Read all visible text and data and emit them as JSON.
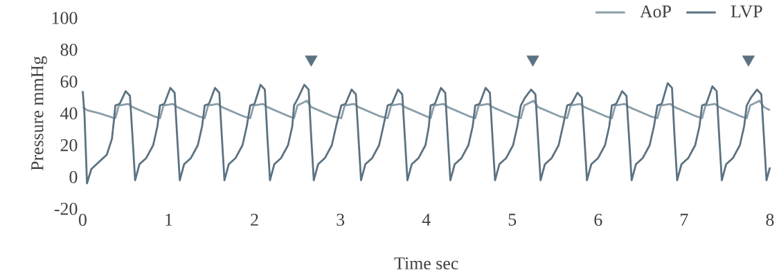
{
  "chart_data": {
    "type": "line",
    "xlabel": "Time sec",
    "ylabel": "Pressure mmHg",
    "xlim": [
      0,
      8
    ],
    "xticks": [
      0,
      1,
      2,
      3,
      4,
      5,
      6,
      7,
      8
    ],
    "ylim": [
      -20,
      100
    ],
    "yticks": [
      -20,
      0,
      20,
      40,
      60,
      80,
      100
    ],
    "legend": "top right",
    "series": [
      {
        "name": "AoP",
        "color": "#8a9ea8",
        "x": [
          0,
          0.05,
          0.2,
          0.37,
          0.38,
          0.42,
          0.53,
          0.58,
          0.84,
          0.9,
          0.94,
          1.05,
          1.1,
          1.36,
          1.42,
          1.46,
          1.57,
          1.62,
          1.88,
          1.95,
          1.99,
          2.1,
          2.15,
          2.41,
          2.46,
          2.5,
          2.61,
          2.66,
          2.92,
          3.01,
          3.05,
          3.16,
          3.21,
          3.47,
          3.55,
          3.59,
          3.7,
          3.75,
          4.01,
          4.05,
          4.09,
          4.2,
          4.25,
          4.51,
          4.57,
          4.61,
          4.72,
          4.77,
          5.03,
          5.1,
          5.14,
          5.25,
          5.3,
          5.56,
          5.64,
          5.68,
          5.79,
          5.84,
          6.1,
          6.16,
          6.2,
          6.31,
          6.36,
          6.62,
          6.69,
          6.73,
          6.84,
          6.89,
          7.15,
          7.21,
          7.25,
          7.36,
          7.41,
          7.67,
          7.73,
          7.77,
          7.88,
          7.93,
          8.0
        ],
        "values": [
          44,
          42,
          40,
          37,
          37,
          45,
          46,
          44,
          38,
          37,
          45,
          46,
          44,
          38,
          37,
          45,
          46,
          44,
          38,
          37,
          45,
          46,
          44,
          38,
          37,
          45,
          48,
          44,
          38,
          37,
          45,
          46,
          44,
          38,
          37,
          45,
          46,
          44,
          38,
          37,
          45,
          46,
          44,
          38,
          37,
          45,
          46,
          44,
          38,
          37,
          45,
          48,
          44,
          38,
          37,
          45,
          46,
          44,
          38,
          37,
          45,
          46,
          44,
          38,
          37,
          45,
          46,
          44,
          38,
          37,
          45,
          46,
          44,
          38,
          37,
          45,
          48,
          44,
          42
        ]
      },
      {
        "name": "LVP",
        "color": "#5b7282",
        "x": [
          0,
          0.02,
          0.05,
          0.1,
          0.18,
          0.28,
          0.34,
          0.36,
          0.38,
          0.43,
          0.5,
          0.55,
          0.58,
          0.61,
          0.66,
          0.74,
          0.82,
          0.87,
          0.9,
          0.95,
          1.02,
          1.07,
          1.1,
          1.13,
          1.18,
          1.26,
          1.34,
          1.39,
          1.42,
          1.47,
          1.54,
          1.59,
          1.62,
          1.65,
          1.7,
          1.78,
          1.86,
          1.91,
          1.95,
          2.0,
          2.07,
          2.12,
          2.15,
          2.18,
          2.23,
          2.31,
          2.39,
          2.44,
          2.46,
          2.51,
          2.58,
          2.63,
          2.66,
          2.69,
          2.74,
          2.82,
          2.9,
          2.95,
          3.01,
          3.06,
          3.13,
          3.18,
          3.21,
          3.24,
          3.29,
          3.37,
          3.45,
          3.5,
          3.55,
          3.6,
          3.67,
          3.72,
          3.75,
          3.78,
          3.83,
          3.91,
          3.99,
          4.03,
          4.05,
          4.1,
          4.17,
          4.22,
          4.25,
          4.28,
          4.33,
          4.41,
          4.49,
          4.54,
          4.57,
          4.62,
          4.69,
          4.74,
          4.77,
          4.8,
          4.85,
          4.93,
          5.01,
          5.06,
          5.1,
          5.15,
          5.22,
          5.27,
          5.3,
          5.33,
          5.38,
          5.46,
          5.54,
          5.59,
          5.64,
          5.69,
          5.76,
          5.81,
          5.84,
          5.87,
          5.92,
          6.0,
          6.08,
          6.13,
          6.16,
          6.21,
          6.28,
          6.33,
          6.36,
          6.39,
          6.44,
          6.52,
          6.6,
          6.65,
          6.69,
          6.74,
          6.81,
          6.86,
          6.89,
          6.92,
          6.97,
          7.05,
          7.13,
          7.18,
          7.21,
          7.26,
          7.33,
          7.38,
          7.41,
          7.44,
          7.49,
          7.57,
          7.65,
          7.7,
          7.73,
          7.78,
          7.85,
          7.9,
          7.93,
          7.96,
          8.0
        ],
        "values": [
          54,
          40,
          -4,
          5,
          9,
          14,
          24,
          34,
          45,
          46,
          54,
          51,
          25,
          -2,
          8,
          12,
          20,
          32,
          45,
          46,
          56,
          53,
          25,
          -2,
          8,
          12,
          20,
          32,
          45,
          46,
          56,
          53,
          25,
          -2,
          8,
          12,
          20,
          32,
          45,
          46,
          58,
          55,
          25,
          -2,
          8,
          12,
          20,
          32,
          45,
          50,
          58,
          55,
          25,
          -2,
          8,
          12,
          20,
          32,
          45,
          46,
          55,
          52,
          25,
          -2,
          8,
          12,
          20,
          32,
          45,
          46,
          55,
          52,
          25,
          -2,
          8,
          12,
          20,
          32,
          45,
          46,
          56,
          53,
          25,
          -2,
          8,
          12,
          20,
          32,
          45,
          46,
          56,
          53,
          25,
          -2,
          8,
          12,
          20,
          32,
          45,
          50,
          55,
          52,
          25,
          -2,
          8,
          12,
          20,
          32,
          45,
          46,
          53,
          50,
          25,
          -2,
          8,
          12,
          20,
          32,
          45,
          46,
          54,
          51,
          25,
          -2,
          8,
          12,
          20,
          32,
          45,
          46,
          59,
          56,
          25,
          -2,
          8,
          12,
          20,
          32,
          45,
          46,
          57,
          54,
          25,
          -2,
          8,
          12,
          20,
          32,
          45,
          50,
          55,
          52,
          25,
          -2,
          6
        ]
      },
      {
        "type": "scatter",
        "marker": "triangle",
        "color": "#5b7282",
        "x": [
          2.66,
          5.24,
          7.75
        ],
        "values": [
          74,
          74,
          74
        ]
      }
    ]
  }
}
